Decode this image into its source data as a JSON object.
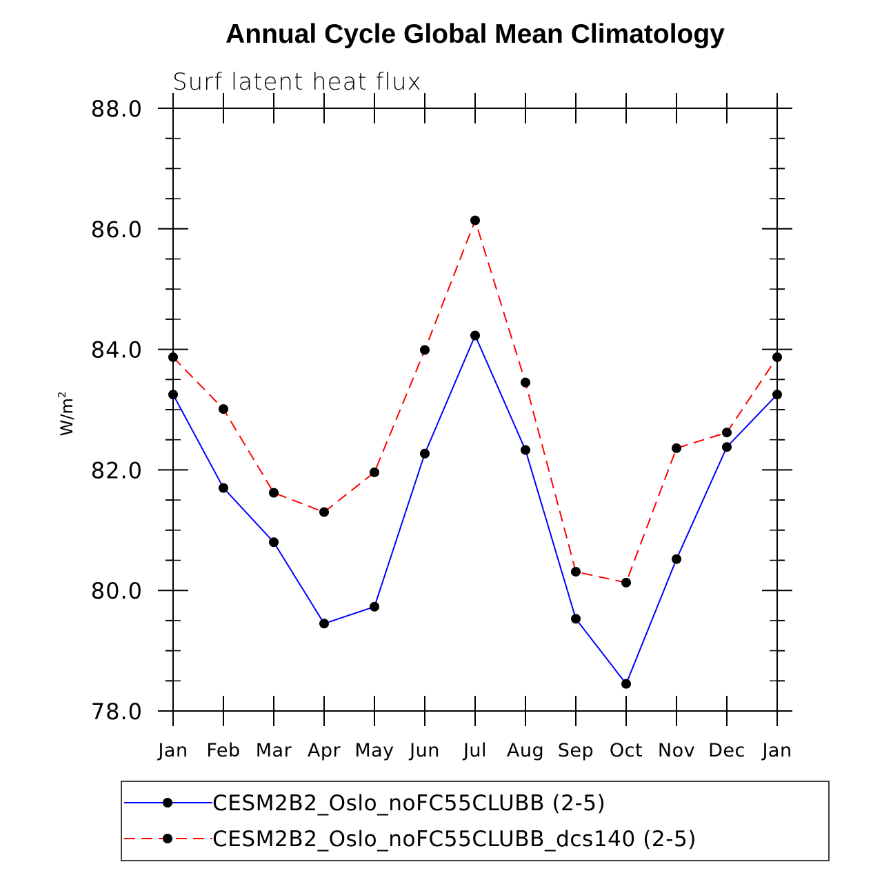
{
  "chart_data": {
    "type": "line",
    "title": "Annual Cycle Global Mean Climatology",
    "subtitle": "Surf latent heat flux",
    "ylabel": "W/m",
    "ylabel_superscript": "2",
    "ylim": [
      78.0,
      88.0
    ],
    "yticks": [
      78.0,
      80.0,
      82.0,
      84.0,
      86.0,
      88.0
    ],
    "ytick_labels": [
      "78.0",
      "80.0",
      "82.0",
      "84.0",
      "86.0",
      "88.0"
    ],
    "yminor_step": 0.5,
    "categories": [
      "Jan",
      "Feb",
      "Mar",
      "Apr",
      "May",
      "Jun",
      "Jul",
      "Aug",
      "Sep",
      "Oct",
      "Nov",
      "Dec",
      "Jan"
    ],
    "series": [
      {
        "name": "CESM2B2_Oslo_noFC55CLUBB (2-5)",
        "color": "#0000ff",
        "dash": "solid",
        "marker_color": "#000000",
        "values": [
          83.25,
          81.7,
          80.8,
          79.45,
          79.73,
          82.27,
          84.23,
          82.33,
          79.53,
          78.45,
          80.52,
          82.38,
          83.25
        ]
      },
      {
        "name": "CESM2B2_Oslo_noFC55CLUBB_dcs140 (2-5)",
        "color": "#ff0000",
        "dash": "dashed",
        "marker_color": "#000000",
        "values": [
          83.87,
          83.01,
          81.62,
          81.3,
          81.96,
          83.99,
          86.14,
          83.45,
          80.31,
          80.13,
          82.36,
          82.62,
          83.87
        ]
      }
    ],
    "legend_position": "bottom"
  }
}
